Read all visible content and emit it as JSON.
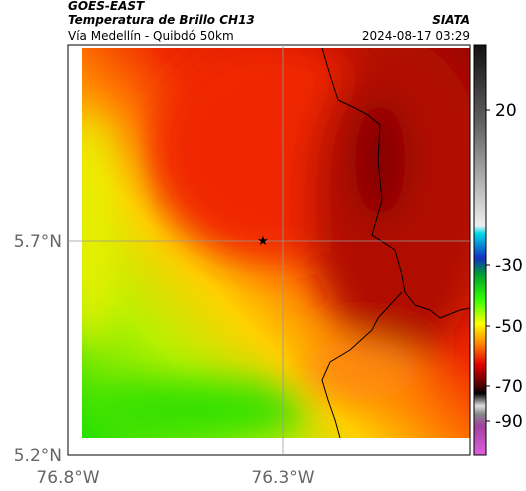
{
  "header": {
    "line1": "GOES-EAST",
    "line2": "Temperatura de Brillo CH13",
    "line3": "Vía Medellín - Quibdó 50km",
    "source": "SIATA",
    "datetime": "2024-08-17 03:29"
  },
  "axes": {
    "lat_labels": [
      "5.7°N",
      "5.2°N"
    ],
    "lon_labels": [
      "76.8°W",
      "76.3°W"
    ]
  },
  "colorbar": {
    "labels": [
      "20",
      "-30",
      "-50",
      "-70",
      "-90"
    ]
  }
}
